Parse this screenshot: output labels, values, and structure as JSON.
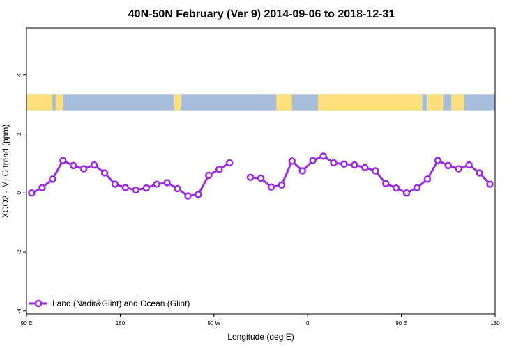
{
  "chart_data": {
    "type": "line",
    "title": "40N-50N February (Ver 9)   2014-09-06 to 2018-12-31",
    "xlabel": "Longitude (deg E)",
    "ylabel": "XCO2 - MLO trend (ppm)",
    "xlim": [
      90,
      540
    ],
    "ylim": [
      -4.1,
      5.6
    ],
    "x_ticks": [
      {
        "value": 90,
        "label": "90 E"
      },
      {
        "value": 180,
        "label": "180"
      },
      {
        "value": 270,
        "label": "90 W"
      },
      {
        "value": 360,
        "label": "0"
      },
      {
        "value": 450,
        "label": "90 E"
      },
      {
        "value": 540,
        "label": "180"
      }
    ],
    "y_ticks": [
      {
        "value": -4,
        "label": "-4"
      },
      {
        "value": -2,
        "label": "-2"
      },
      {
        "value": 0,
        "label": "0"
      },
      {
        "value": 2,
        "label": "2"
      },
      {
        "value": 4,
        "label": "4"
      }
    ],
    "series": [
      {
        "name": "Land (Nadir&Glint) and Ocean (Glint)",
        "color": "#9a2be2",
        "x": [
          95,
          105,
          115,
          125,
          135,
          145,
          155,
          165,
          175,
          185,
          195,
          205,
          215,
          225,
          235,
          245,
          255,
          265,
          275,
          285,
          295,
          305,
          315,
          325,
          335,
          345,
          355,
          365,
          375,
          385,
          395,
          405,
          415,
          425,
          435,
          445,
          455,
          465,
          475,
          485,
          495,
          505,
          515,
          525,
          535
        ],
        "y": [
          0.0,
          0.18,
          0.47,
          1.1,
          0.93,
          0.82,
          0.95,
          0.68,
          0.3,
          0.18,
          0.1,
          0.17,
          0.3,
          0.35,
          0.15,
          -0.1,
          -0.05,
          0.6,
          0.8,
          1.02,
          null,
          0.53,
          0.5,
          0.2,
          0.27,
          1.08,
          0.75,
          1.1,
          1.25,
          1.02,
          0.98,
          0.95,
          0.86,
          0.75,
          0.32,
          0.17,
          0.0,
          0.18,
          0.47,
          1.1,
          0.93,
          0.82,
          0.95,
          0.68,
          0.3
        ]
      }
    ],
    "legend_position": "bottom-left",
    "grid": false,
    "map_band": {
      "y_range": [
        2.8,
        3.35
      ],
      "ocean_color": "#a8bddc",
      "land_color": "#fde07e"
    }
  }
}
